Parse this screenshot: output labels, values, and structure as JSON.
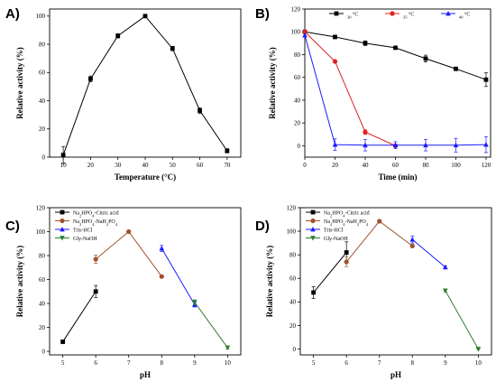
{
  "chart_data": [
    {
      "panel": "A)",
      "type": "line",
      "xlabel": "Temperature (°C)",
      "ylabel": "Relative activity (%)",
      "xlim": [
        5,
        75
      ],
      "ylim": [
        0,
        105
      ],
      "xticks": [
        "10",
        "20",
        "30",
        "40",
        "50",
        "60",
        "70"
      ],
      "yticks": [
        "0",
        "20",
        "40",
        "60",
        "80",
        "100"
      ],
      "legend": "none",
      "series": [
        {
          "color": "#000000",
          "marker": "square",
          "points": [
            {
              "x": 10,
              "y": 1.5,
              "err": 6
            },
            {
              "x": 20,
              "y": 55.5,
              "err": 2
            },
            {
              "x": 30,
              "y": 86,
              "err": 1.5
            },
            {
              "x": 40,
              "y": 100,
              "err": 0.5
            },
            {
              "x": 50,
              "y": 77,
              "err": 1.5
            },
            {
              "x": 60,
              "y": 33,
              "err": 2
            },
            {
              "x": 70,
              "y": 4.5,
              "err": 1.5
            }
          ]
        }
      ]
    },
    {
      "panel": "B)",
      "type": "line",
      "xlabel": "Time (min)",
      "ylabel": "Relative activity (%)",
      "xlim": [
        0,
        123
      ],
      "ylim": [
        -10,
        120
      ],
      "xticks": [
        "0",
        "20",
        "40",
        "60",
        "80",
        "100",
        "120"
      ],
      "yticks": [
        "0",
        "20",
        "40",
        "60",
        "80",
        "100",
        "120"
      ],
      "legend": "top-right, horizontal",
      "series": [
        {
          "name": "30 °C",
          "color": "#000000",
          "marker": "square",
          "points": [
            {
              "x": 0,
              "y": 100,
              "err": 0
            },
            {
              "x": 20,
              "y": 95.5,
              "err": 1.5
            },
            {
              "x": 40,
              "y": 90,
              "err": 2
            },
            {
              "x": 60,
              "y": 86,
              "err": 1
            },
            {
              "x": 80,
              "y": 76.5,
              "err": 3
            },
            {
              "x": 100,
              "y": 67.5,
              "err": 1
            },
            {
              "x": 120,
              "y": 58,
              "err": 6
            }
          ]
        },
        {
          "name": "35 °C",
          "color": "#e02020",
          "marker": "circle",
          "points": [
            {
              "x": 0,
              "y": 100,
              "err": 0
            },
            {
              "x": 20,
              "y": 74,
              "err": 1
            },
            {
              "x": 40,
              "y": 12,
              "err": 2
            },
            {
              "x": 60,
              "y": 0,
              "err": 1
            }
          ]
        },
        {
          "name": "40 °C",
          "color": "#1a1aff",
          "marker": "triangle",
          "points": [
            {
              "x": 0,
              "y": 97,
              "err": 0
            },
            {
              "x": 20,
              "y": 1,
              "err": 5
            },
            {
              "x": 40,
              "y": 0.5,
              "err": 5
            },
            {
              "x": 60,
              "y": 0.5,
              "err": 3
            },
            {
              "x": 80,
              "y": 0.5,
              "err": 5
            },
            {
              "x": 100,
              "y": 0.5,
              "err": 6
            },
            {
              "x": 120,
              "y": 1,
              "err": 7
            }
          ]
        }
      ]
    },
    {
      "panel": "C)",
      "type": "line",
      "xlabel": "pH",
      "ylabel": "Relative activity (%)",
      "xlim": [
        4.6,
        10.4
      ],
      "ylim": [
        -3,
        120
      ],
      "xticks": [
        "5",
        "6",
        "7",
        "8",
        "9",
        "10"
      ],
      "yticks": [
        "0",
        "20",
        "40",
        "60",
        "80",
        "100",
        "120"
      ],
      "legend": "top-left",
      "series": [
        {
          "name": "Na2HPO4-Citric acid",
          "color": "#000000",
          "marker": "square",
          "points": [
            {
              "x": 5,
              "y": 8,
              "err": 1.5
            },
            {
              "x": 6,
              "y": 50,
              "err": 5
            }
          ]
        },
        {
          "name": "Na2HPO4-NaH2PO4",
          "color": "#a0522d",
          "marker": "circle",
          "points": [
            {
              "x": 6,
              "y": 77,
              "err": 3.5
            },
            {
              "x": 7,
              "y": 100,
              "err": 0.5
            },
            {
              "x": 8,
              "y": 62.5,
              "err": 1
            }
          ]
        },
        {
          "name": "Tris-HCl",
          "color": "#1a1aff",
          "marker": "triangle",
          "points": [
            {
              "x": 8,
              "y": 86,
              "err": 2.5
            },
            {
              "x": 9,
              "y": 39,
              "err": 2
            }
          ]
        },
        {
          "name": "Gly-NaOH",
          "color": "#2e7d32",
          "marker": "triangle-down",
          "points": [
            {
              "x": 9,
              "y": 41,
              "err": 2
            },
            {
              "x": 10,
              "y": 3,
              "err": 1
            }
          ]
        }
      ]
    },
    {
      "panel": "D)",
      "type": "line",
      "xlabel": "pH",
      "ylabel": "Relative activity (%)",
      "xlim": [
        4.6,
        10.4
      ],
      "ylim": [
        -5,
        120
      ],
      "xticks": [
        "5",
        "6",
        "7",
        "8",
        "9",
        "10"
      ],
      "yticks": [
        "0",
        "20",
        "40",
        "60",
        "80",
        "100",
        "120"
      ],
      "legend": "top-left",
      "series": [
        {
          "name": "Na2HPO4-Citric acid",
          "color": "#000000",
          "marker": "square",
          "points": [
            {
              "x": 5,
              "y": 48,
              "err": 5
            },
            {
              "x": 6,
              "y": 82,
              "err": 9
            }
          ]
        },
        {
          "name": "Na2HPO4-NaH2PO4",
          "color": "#a0522d",
          "marker": "circle",
          "points": [
            {
              "x": 6,
              "y": 74,
              "err": 4
            },
            {
              "x": 7,
              "y": 108.5,
              "err": 0.5
            },
            {
              "x": 8,
              "y": 87.5,
              "err": 1
            }
          ]
        },
        {
          "name": "Tris-HCl",
          "color": "#1a1aff",
          "marker": "triangle",
          "points": [
            {
              "x": 8,
              "y": 93,
              "err": 3
            },
            {
              "x": 9,
              "y": 69.5,
              "err": 1
            }
          ]
        },
        {
          "name": "Gly-NaOH",
          "color": "#2e7d32",
          "marker": "triangle-down",
          "points": [
            {
              "x": 9,
              "y": 49.5,
              "err": 1
            },
            {
              "x": 10,
              "y": 0,
              "err": 0.5
            }
          ]
        }
      ]
    }
  ]
}
